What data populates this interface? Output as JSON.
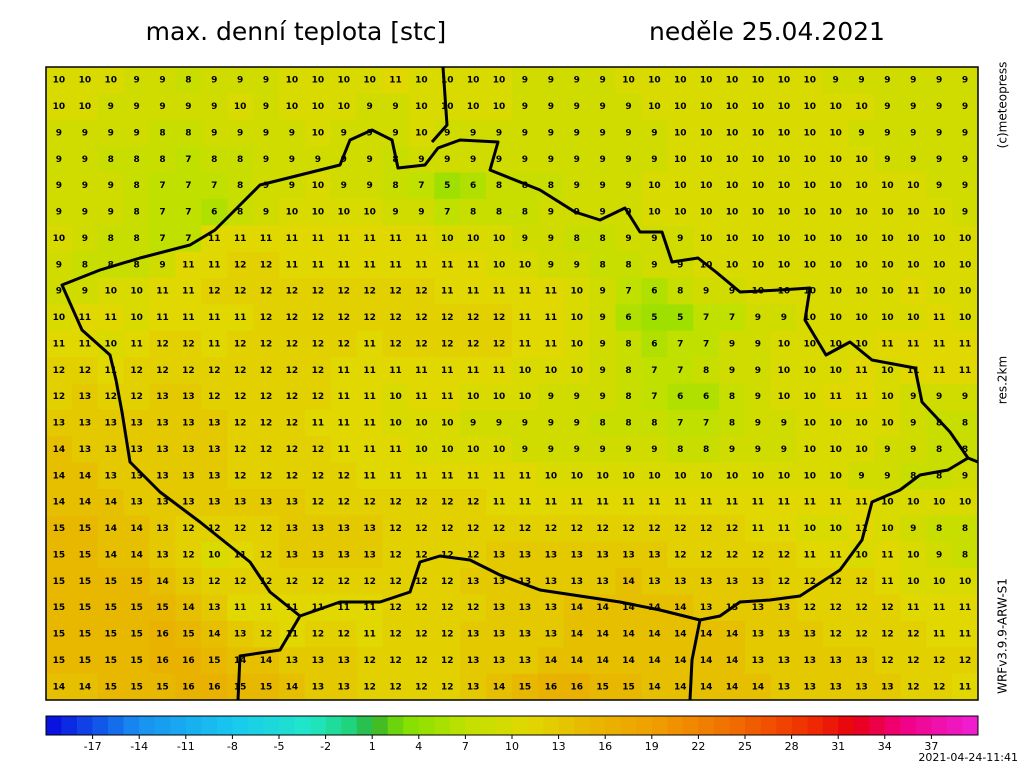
{
  "header": {
    "title": "max. denní teplota [stc]",
    "date": "neděle 25.04.2021"
  },
  "side_labels": {
    "copyright": "(c)meteopress",
    "resolution": "res.2km",
    "model": "WRFv3.9.9-ARW-S1"
  },
  "timestamp": "2021-04-24-11:41",
  "grid": {
    "rows": [
      [
        10,
        10,
        10,
        9,
        9,
        8,
        9,
        9,
        9,
        10,
        10,
        10,
        10,
        11,
        10,
        10,
        10,
        10,
        9,
        9,
        9,
        9,
        10,
        10,
        10,
        10,
        10,
        10,
        10,
        10,
        9,
        9,
        9,
        9,
        9,
        9
      ],
      [
        10,
        10,
        9,
        9,
        9,
        9,
        9,
        10,
        9,
        10,
        10,
        10,
        9,
        9,
        10,
        10,
        10,
        10,
        9,
        9,
        9,
        9,
        9,
        10,
        10,
        10,
        10,
        10,
        10,
        10,
        10,
        10,
        9,
        9,
        9,
        9
      ],
      [
        9,
        9,
        9,
        9,
        8,
        8,
        9,
        9,
        9,
        9,
        10,
        9,
        9,
        9,
        10,
        9,
        9,
        9,
        9,
        9,
        9,
        9,
        9,
        9,
        10,
        10,
        10,
        10,
        10,
        10,
        10,
        9,
        9,
        9,
        9,
        9
      ],
      [
        9,
        9,
        8,
        8,
        8,
        7,
        8,
        8,
        9,
        9,
        9,
        9,
        9,
        8,
        9,
        9,
        9,
        9,
        9,
        9,
        9,
        9,
        9,
        9,
        10,
        10,
        10,
        10,
        10,
        10,
        10,
        10,
        9,
        9,
        9,
        9
      ],
      [
        9,
        9,
        9,
        8,
        7,
        7,
        7,
        8,
        9,
        9,
        10,
        9,
        9,
        8,
        7,
        5,
        6,
        8,
        8,
        8,
        9,
        9,
        9,
        10,
        10,
        10,
        10,
        10,
        10,
        10,
        10,
        10,
        10,
        10,
        9,
        9
      ],
      [
        9,
        9,
        9,
        8,
        7,
        7,
        6,
        8,
        9,
        10,
        10,
        10,
        10,
        9,
        9,
        7,
        8,
        8,
        8,
        9,
        9,
        9,
        9,
        10,
        10,
        10,
        10,
        10,
        10,
        10,
        10,
        10,
        10,
        10,
        10,
        9
      ],
      [
        10,
        9,
        8,
        8,
        7,
        7,
        11,
        11,
        11,
        11,
        11,
        11,
        11,
        11,
        11,
        10,
        10,
        10,
        9,
        9,
        8,
        8,
        9,
        9,
        9,
        10,
        10,
        10,
        10,
        10,
        10,
        10,
        10,
        10,
        10,
        10
      ],
      [
        9,
        8,
        8,
        8,
        9,
        11,
        11,
        12,
        12,
        11,
        11,
        11,
        11,
        11,
        11,
        11,
        11,
        10,
        10,
        9,
        9,
        8,
        8,
        9,
        9,
        10,
        10,
        10,
        10,
        10,
        10,
        10,
        10,
        10,
        10,
        10
      ],
      [
        9,
        9,
        10,
        10,
        11,
        11,
        12,
        12,
        12,
        12,
        12,
        12,
        12,
        12,
        12,
        11,
        11,
        11,
        11,
        11,
        10,
        9,
        7,
        6,
        8,
        9,
        9,
        10,
        10,
        10,
        10,
        10,
        10,
        11,
        10,
        10
      ],
      [
        10,
        11,
        11,
        10,
        11,
        11,
        11,
        11,
        12,
        12,
        12,
        12,
        12,
        12,
        12,
        12,
        12,
        12,
        11,
        11,
        10,
        9,
        6,
        5,
        5,
        7,
        7,
        9,
        9,
        10,
        10,
        10,
        10,
        10,
        11,
        10
      ],
      [
        11,
        11,
        10,
        11,
        12,
        12,
        11,
        12,
        12,
        12,
        12,
        12,
        11,
        12,
        12,
        12,
        12,
        12,
        11,
        11,
        10,
        9,
        8,
        6,
        7,
        7,
        9,
        9,
        10,
        10,
        10,
        10,
        11,
        11,
        11,
        11
      ],
      [
        12,
        12,
        11,
        12,
        12,
        12,
        12,
        12,
        12,
        12,
        12,
        11,
        11,
        11,
        11,
        11,
        11,
        11,
        10,
        10,
        10,
        9,
        8,
        7,
        7,
        8,
        9,
        9,
        10,
        10,
        10,
        11,
        10,
        11,
        11,
        11
      ],
      [
        12,
        13,
        12,
        12,
        13,
        13,
        12,
        12,
        12,
        12,
        12,
        11,
        11,
        10,
        11,
        11,
        10,
        10,
        10,
        9,
        9,
        9,
        8,
        7,
        6,
        6,
        8,
        9,
        10,
        10,
        11,
        11,
        10,
        9,
        9,
        9
      ],
      [
        13,
        13,
        13,
        13,
        13,
        13,
        13,
        12,
        12,
        12,
        11,
        11,
        11,
        10,
        10,
        10,
        9,
        9,
        9,
        9,
        9,
        8,
        8,
        8,
        7,
        7,
        8,
        9,
        9,
        10,
        10,
        10,
        10,
        9,
        8,
        8
      ],
      [
        14,
        13,
        13,
        13,
        13,
        13,
        13,
        12,
        12,
        12,
        12,
        11,
        11,
        11,
        10,
        10,
        10,
        10,
        9,
        9,
        9,
        9,
        9,
        9,
        8,
        8,
        9,
        9,
        9,
        10,
        10,
        10,
        9,
        9,
        8,
        8
      ],
      [
        14,
        14,
        13,
        13,
        13,
        13,
        13,
        12,
        12,
        12,
        12,
        12,
        11,
        11,
        11,
        11,
        11,
        11,
        11,
        10,
        10,
        10,
        10,
        10,
        10,
        10,
        10,
        10,
        10,
        10,
        10,
        9,
        9,
        8,
        8,
        9
      ],
      [
        14,
        14,
        14,
        13,
        13,
        13,
        13,
        13,
        13,
        13,
        12,
        12,
        12,
        12,
        12,
        12,
        12,
        11,
        11,
        11,
        11,
        11,
        11,
        11,
        11,
        11,
        11,
        11,
        11,
        11,
        11,
        11,
        10,
        10,
        10,
        10
      ],
      [
        15,
        15,
        14,
        14,
        13,
        12,
        12,
        12,
        12,
        13,
        13,
        13,
        13,
        12,
        12,
        12,
        12,
        12,
        12,
        12,
        12,
        12,
        12,
        12,
        12,
        12,
        12,
        11,
        11,
        10,
        10,
        11,
        10,
        9,
        8,
        8
      ],
      [
        15,
        15,
        14,
        14,
        13,
        12,
        10,
        11,
        12,
        13,
        13,
        13,
        13,
        12,
        12,
        12,
        12,
        13,
        13,
        13,
        13,
        13,
        13,
        13,
        12,
        12,
        12,
        12,
        12,
        11,
        11,
        10,
        11,
        10,
        9,
        8
      ],
      [
        15,
        15,
        15,
        15,
        14,
        13,
        12,
        12,
        12,
        12,
        12,
        12,
        12,
        12,
        12,
        12,
        13,
        13,
        13,
        13,
        13,
        13,
        14,
        13,
        13,
        13,
        13,
        13,
        12,
        12,
        12,
        12,
        11,
        10,
        10,
        10
      ],
      [
        15,
        15,
        15,
        15,
        15,
        14,
        13,
        11,
        11,
        11,
        11,
        11,
        11,
        12,
        12,
        12,
        12,
        13,
        13,
        13,
        14,
        14,
        14,
        14,
        14,
        13,
        13,
        13,
        13,
        12,
        12,
        12,
        12,
        11,
        11,
        11
      ],
      [
        15,
        15,
        15,
        15,
        16,
        15,
        14,
        13,
        12,
        11,
        12,
        12,
        11,
        12,
        12,
        12,
        13,
        13,
        13,
        13,
        14,
        14,
        14,
        14,
        14,
        14,
        14,
        13,
        13,
        13,
        12,
        12,
        12,
        12,
        11,
        11
      ],
      [
        15,
        15,
        15,
        15,
        16,
        16,
        15,
        14,
        14,
        13,
        13,
        13,
        12,
        12,
        12,
        12,
        13,
        13,
        13,
        14,
        14,
        14,
        14,
        14,
        14,
        14,
        14,
        13,
        13,
        13,
        13,
        13,
        12,
        12,
        12,
        12
      ],
      [
        14,
        14,
        15,
        15,
        15,
        16,
        16,
        15,
        15,
        14,
        13,
        13,
        12,
        12,
        12,
        12,
        13,
        14,
        15,
        16,
        16,
        15,
        15,
        14,
        14,
        14,
        14,
        14,
        13,
        13,
        13,
        13,
        13,
        12,
        12,
        11
      ]
    ]
  },
  "colorbar": {
    "range": [
      -20,
      40
    ],
    "ticks": [
      -17,
      -14,
      -11,
      -8,
      -5,
      -2,
      1,
      4,
      7,
      10,
      13,
      16,
      19,
      22,
      25,
      28,
      31,
      34,
      37
    ],
    "stops": [
      [
        -20,
        "#0808e0"
      ],
      [
        -14,
        "#1890f0"
      ],
      [
        -8,
        "#18c8f0"
      ],
      [
        -3,
        "#20e8c8"
      ],
      [
        0,
        "#20d070"
      ],
      [
        1,
        "#30b030"
      ],
      [
        3,
        "#80e000"
      ],
      [
        7,
        "#c0e000"
      ],
      [
        11,
        "#e0d800"
      ],
      [
        15,
        "#e8b800"
      ],
      [
        19,
        "#f0a000"
      ],
      [
        24,
        "#f07000"
      ],
      [
        29,
        "#f03000"
      ],
      [
        32,
        "#e80010"
      ],
      [
        35,
        "#f00080"
      ],
      [
        40,
        "#f020d8"
      ]
    ]
  }
}
